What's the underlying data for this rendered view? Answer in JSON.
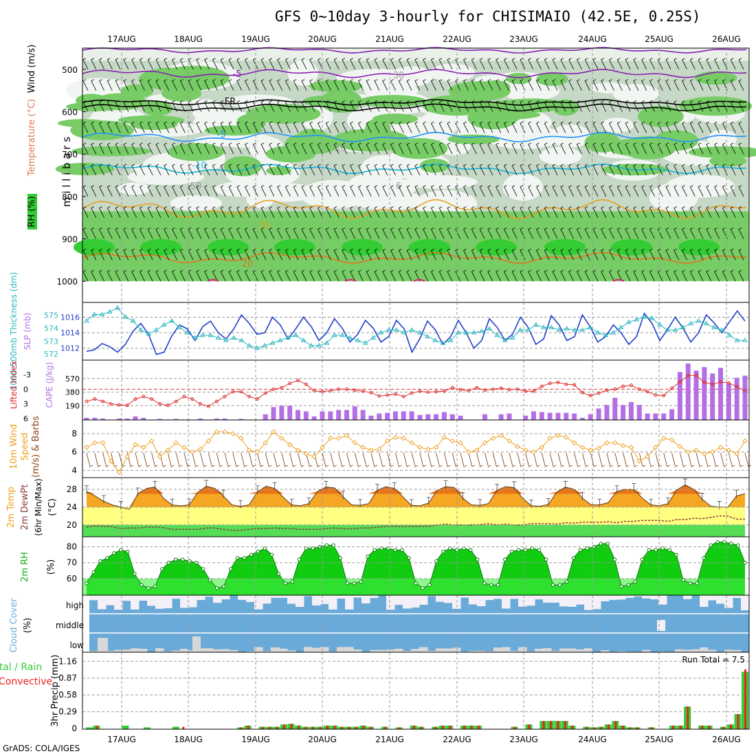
{
  "title": "GFS 0~10day 3-hourly for CHISIMAIO (42.5E, 0.25S)",
  "credit": "GrADS: COLA/IGES",
  "colors": {
    "rh_green": "#66cc66",
    "wind": "#000000",
    "temp_purple": "#8a1eb4",
    "temp_blue": "#1e90ff",
    "temp_cyan": "#14b4dc",
    "temp_orange": "#e6a020",
    "slp": "#1f3fc9",
    "thickness": "#2ab7c0",
    "lifted": "#e03030",
    "cape": "#b46fe6",
    "wind10": "#f0a020",
    "temp2m": "#f0a020",
    "dewpt": "#8b3a3a",
    "rh2m": "#11b011",
    "cloud": "#6aaad8",
    "precip_total": "#33cc33",
    "precip_conv": "#ee2222"
  },
  "chart_data": [
    {
      "panel": "upper-air",
      "type": "heatmap",
      "date_labels": [
        "17AUG",
        "18AUG",
        "19AUG",
        "20AUG",
        "21AUG",
        "22AUG",
        "23AUG",
        "24AUG",
        "25AUG",
        "26AUG"
      ],
      "ylabel": "m i l l i b a r s",
      "side_labels": [
        "RH (%)",
        "Temperature (°C)",
        "Wind (m/s)"
      ],
      "yticks": [
        "500",
        "600",
        "700",
        "800",
        "900",
        "1000"
      ],
      "contour_labels": [
        "-5",
        "FR",
        "-5",
        "-10",
        "15",
        "20",
        "30",
        "50",
        "50",
        "6"
      ]
    },
    {
      "panel": "slp-thickness",
      "type": "line",
      "ylabel_left": "1000-500mb Thickness (dm)",
      "ylabel_right": "SLP (mb)",
      "ticks_thickness": [
        "575",
        "574",
        "573",
        "572"
      ],
      "ticks_slp": [
        "1016",
        "1014",
        "1012"
      ],
      "series": [
        {
          "name": "SLP",
          "values": [
            1011.6,
            1011.8,
            1012.6,
            1012.2,
            1011.5,
            1012.5,
            1014.2,
            1015.2,
            1013.8,
            1011.2,
            1011.5,
            1013.6,
            1015.0,
            1014.5,
            1013.0,
            1014.8,
            1015.5,
            1014.0,
            1013.2,
            1014.5,
            1016.3,
            1015.2,
            1013.8,
            1014.0,
            1016.0,
            1015.0,
            1013.2,
            1014.5,
            1016.0,
            1014.8,
            1013.0,
            1014.0,
            1015.8,
            1014.6,
            1012.8,
            1013.8,
            1015.6,
            1014.6,
            1012.8,
            1013.5,
            1015.6,
            1014.5,
            1011.5,
            1013.2,
            1015.5,
            1014.4,
            1012.5,
            1013.5,
            1015.6,
            1014.0,
            1012.0,
            1013.0,
            1015.8,
            1014.7,
            1013.0,
            1013.8,
            1016.0,
            1014.7,
            1012.5,
            1013.2,
            1016.2,
            1015.0,
            1013.0,
            1013.5,
            1016.3,
            1014.8,
            1012.8,
            1013.5,
            1015.0,
            1014.0,
            1012.5,
            1013.5,
            1016.5,
            1015.2,
            1013.0,
            1014.4,
            1016.0,
            1014.6,
            1012.8,
            1014.0,
            1016.3,
            1015.3,
            1014.0,
            1015.4,
            1016.8,
            1015.5
          ]
        },
        {
          "name": "Thickness",
          "values": [
            574.5,
            575.0,
            575.0,
            575.2,
            575.5,
            574.8,
            574.5,
            573.8,
            573.5,
            573.8,
            574.2,
            574.5,
            574.0,
            573.6,
            573.2,
            573.4,
            573.4,
            573.2,
            573.0,
            573.2,
            573.0,
            572.6,
            572.4,
            572.6,
            572.8,
            573.0,
            573.2,
            573.4,
            573.0,
            572.6,
            572.6,
            572.8,
            573.4,
            573.4,
            573.2,
            573.0,
            572.8,
            573.2,
            573.6,
            573.8,
            573.8,
            573.6,
            573.8,
            573.6,
            573.3,
            573.0,
            572.8,
            573.0,
            573.6,
            573.6,
            573.6,
            573.7,
            573.9,
            573.4,
            573.0,
            573.2,
            573.8,
            573.8,
            574.2,
            574.0,
            574.0,
            573.8,
            573.9,
            573.8,
            573.8,
            574.0,
            573.6,
            573.4,
            573.6,
            574.0,
            574.4,
            574.6,
            574.8,
            574.7,
            574.2,
            573.8,
            573.8,
            574.0,
            574.3,
            574.5,
            574.3,
            574.0,
            573.8,
            573.4,
            573.0,
            573.0
          ]
        }
      ]
    },
    {
      "panel": "cape-lifted-index",
      "type": "bar",
      "ylabel_left": "Lifted Index",
      "ylabel_right": "CAPE (J/kg)",
      "ticks_li": [
        "-3",
        "0",
        "3",
        "6"
      ],
      "ticks_cape": [
        "570",
        "380",
        "190"
      ],
      "series": [
        {
          "name": "CAPE",
          "values": [
            20,
            20,
            10,
            0,
            10,
            10,
            40,
            20,
            0,
            5,
            0,
            5,
            0,
            0,
            10,
            0,
            10,
            10,
            0,
            5,
            0,
            0,
            70,
            170,
            190,
            190,
            130,
            110,
            40,
            110,
            110,
            130,
            130,
            180,
            130,
            50,
            80,
            90,
            110,
            110,
            110,
            60,
            70,
            70,
            100,
            70,
            50,
            0,
            0,
            70,
            0,
            70,
            80,
            0,
            50,
            110,
            100,
            90,
            90,
            90,
            80,
            20,
            70,
            150,
            200,
            300,
            200,
            240,
            200,
            80,
            80,
            80,
            140,
            660,
            780,
            680,
            730,
            640,
            720,
            500,
            580,
            610
          ]
        },
        {
          "name": "Lifted Index",
          "values": [
            2.5,
            2.0,
            2.5,
            3.0,
            3.2,
            3.3,
            2.0,
            1.5,
            2.0,
            3.0,
            3.3,
            2.5,
            1.5,
            2.0,
            3.0,
            3.5,
            2.5,
            1.5,
            0.5,
            0.5,
            1.5,
            2.0,
            0.8,
            0.0,
            -0.3,
            -1.2,
            -1.8,
            -1.0,
            0.3,
            0.5,
            0.3,
            0.0,
            0.0,
            0.2,
            0.4,
            0.7,
            1.4,
            1.2,
            1.0,
            1.5,
            0.8,
            0.4,
            0.6,
            0.5,
            0.4,
            -0.3,
            0.1,
            0.3,
            -0.3,
            0.2,
            0.0,
            -0.2,
            0.1,
            0.0,
            0.4,
            0.4,
            -0.6,
            -1.2,
            -1.4,
            -1.0,
            -0.9,
            0.7,
            1.3,
            0.8,
            0.2,
            0.0,
            -0.6,
            -0.8,
            0.0,
            0.5,
            1.2,
            1.3,
            -0.2,
            -1.5,
            -2.8,
            -2.8,
            -1.4,
            -1.0,
            -1.5,
            -1.3,
            -0.5,
            0.3
          ]
        }
      ]
    },
    {
      "panel": "10m-wind",
      "type": "line",
      "ylabel": "10m Wind Speed (m/s) & Barbs",
      "yticks": [
        "8",
        "6",
        "4"
      ],
      "series": [
        {
          "name": "Wind speed",
          "values": [
            6.5,
            7.0,
            7.0,
            5.0,
            3.8,
            5.5,
            6.8,
            6.5,
            7.2,
            5.5,
            6.2,
            7.0,
            6.5,
            6.0,
            6.3,
            7.2,
            8.2,
            8.2,
            8.0,
            7.5,
            6.2,
            6.0,
            7.0,
            8.2,
            7.5,
            6.8,
            6.2,
            5.8,
            5.5,
            6.5,
            7.5,
            7.5,
            7.8,
            7.0,
            6.5,
            6.2,
            6.3,
            7.2,
            7.6,
            7.5,
            7.0,
            6.5,
            6.3,
            6.5,
            7.6,
            7.2,
            7.0,
            6.0,
            6.2,
            7.0,
            7.5,
            7.8,
            7.2,
            6.6,
            6.2,
            6.0,
            6.5,
            7.5,
            7.8,
            7.6,
            7.0,
            6.5,
            6.2,
            6.4,
            7.0,
            7.0,
            6.7,
            6.5,
            5.0,
            5.5,
            6.5,
            7.5,
            7.3,
            6.6,
            6.0,
            6.2,
            5.8,
            6.0,
            6.5,
            6.2,
            5.8,
            7.2
          ]
        }
      ]
    },
    {
      "panel": "2m-temp",
      "type": "area",
      "ylabel": "2m Temp 2m DewPt (6hr Min/Max) (°C)",
      "yticks": [
        "28",
        "24",
        "20"
      ],
      "series": [
        {
          "name": "2m Temp",
          "values": [
            27.5,
            26.5,
            25.3,
            24.5,
            24.0,
            23.5,
            27.0,
            28.2,
            28.5,
            26.0,
            24.5,
            24.3,
            24.5,
            27.3,
            28.7,
            28.2,
            26.5,
            24.5,
            24.2,
            24.5,
            27.5,
            28.7,
            28.2,
            26.2,
            24.5,
            24.3,
            24.8,
            27.5,
            28.5,
            28.3,
            26.3,
            24.5,
            24.4,
            24.8,
            27.8,
            28.6,
            28.2,
            26.3,
            24.4,
            24.3,
            24.9,
            27.8,
            28.6,
            28.4,
            26.0,
            24.5,
            24.4,
            24.8,
            27.8,
            28.6,
            28.4,
            26.0,
            24.3,
            24.2,
            24.6,
            27.4,
            28.5,
            28.0,
            26.0,
            24.5,
            24.5,
            25.0,
            27.5,
            28.0,
            28.0,
            26.0,
            24.5,
            24.3,
            24.8,
            27.8,
            29.0,
            28.0,
            25.8,
            24.2,
            24.0,
            24.0,
            26.5,
            27.0
          ]
        },
        {
          "name": "2m DewPt",
          "values": [
            19.5,
            19.8,
            19.7,
            19.6,
            19.2,
            19.3,
            19.3,
            19.5,
            19.5,
            19.4,
            19.0,
            19.0,
            19.0,
            19.0,
            19.3,
            19.3,
            19.0,
            18.8,
            18.8,
            19.0,
            19.2,
            19.2,
            19.3,
            19.2,
            19.2,
            19.0,
            19.0,
            19.0,
            19.2,
            19.3,
            19.2,
            19.1,
            19.3,
            19.3,
            19.5,
            19.7,
            19.7,
            19.6,
            19.7,
            19.7,
            19.7,
            20.0,
            20.2,
            20.0,
            20.0,
            20.0,
            20.1,
            20.3,
            20.0,
            20.2,
            20.0,
            20.0,
            20.3,
            20.3,
            20.3,
            20.2,
            20.5,
            20.4,
            20.6,
            20.6,
            20.6,
            20.7,
            20.5,
            20.8,
            20.8,
            21.0,
            21.0,
            21.0,
            20.8,
            21.2,
            21.2,
            21.5,
            21.4,
            21.7,
            22.0,
            22.0,
            21.3,
            21.3
          ]
        }
      ]
    },
    {
      "panel": "2m-rh",
      "type": "area",
      "ylabel": "2m RH (%)",
      "yticks": [
        "80",
        "70",
        "60"
      ],
      "series": [
        {
          "name": "2m RH",
          "values": [
            57,
            64,
            71,
            73,
            76,
            78,
            77,
            63,
            56,
            54,
            55,
            66,
            70,
            72,
            72,
            71,
            70,
            66,
            59,
            54,
            55,
            66,
            73,
            73,
            75,
            77,
            79,
            75,
            63,
            57,
            58,
            72,
            79,
            79,
            80,
            81,
            81,
            73,
            57,
            57,
            58,
            74,
            78,
            79,
            79,
            78,
            78,
            73,
            57,
            54,
            56,
            71,
            77,
            79,
            78,
            79,
            78,
            72,
            57,
            56,
            56,
            72,
            77,
            78,
            78,
            79,
            78,
            72,
            56,
            56,
            58,
            73,
            78,
            79,
            80,
            82,
            82,
            72,
            55,
            56,
            58,
            72,
            78,
            78,
            79,
            78,
            75,
            59,
            57,
            57,
            73,
            81,
            83,
            83,
            82,
            81,
            70
          ]
        }
      ]
    },
    {
      "panel": "cloud-cover",
      "type": "bar",
      "ylabel": "Cloud Cover (%)",
      "row_labels": [
        "high",
        "middle",
        "low"
      ]
    },
    {
      "panel": "precip",
      "type": "bar",
      "ylabel": "3hr Precip (mm)",
      "legend_left": [
        "Total / Rain",
        "Convective"
      ],
      "yticks": [
        "1.16",
        "0.87",
        "0.58",
        "0.29",
        "0"
      ],
      "run_total_label": "Run Total = 7.5",
      "series": [
        {
          "name": "Total",
          "values": [
            0.02,
            0.05,
            0,
            0,
            0,
            0.05,
            0,
            0,
            0.02,
            0,
            0,
            0,
            0.03,
            0,
            0,
            0,
            0,
            0,
            0,
            0,
            0,
            0.02,
            0.05,
            0,
            0.03,
            0.03,
            0.03,
            0.07,
            0.08,
            0.05,
            0.03,
            0.03,
            0.03,
            0.05,
            0.05,
            0.03,
            0.03,
            0.03,
            0.05,
            0.03,
            0,
            0.03,
            0,
            0.02,
            0,
            0.05,
            0.03,
            0,
            0.03,
            0.05,
            0.05,
            0,
            0.05,
            0.05,
            0.05,
            0,
            0,
            0,
            0,
            0.03,
            0,
            0.07,
            0,
            0.13,
            0.13,
            0.13,
            0.13,
            0.05,
            0,
            0.03,
            0.02,
            0.03,
            0.07,
            0.13,
            0.05,
            0.02,
            0.02,
            0,
            0.02,
            0,
            0,
            0.05,
            0.05,
            0.38,
            0,
            0.05,
            0.05,
            0,
            0.03,
            0.07,
            0.25,
            0.98
          ]
        },
        {
          "name": "Convective",
          "values": [
            0,
            0.05,
            0,
            0,
            0,
            0,
            0,
            0,
            0,
            0,
            0,
            0,
            0,
            0.03,
            0,
            0,
            0,
            0,
            0,
            0,
            0,
            0.02,
            0.05,
            0,
            0.03,
            0.03,
            0.03,
            0.07,
            0.08,
            0.05,
            0.03,
            0.03,
            0.03,
            0.05,
            0.05,
            0.03,
            0.03,
            0.03,
            0.05,
            0.03,
            0,
            0.03,
            0,
            0.02,
            0,
            0.05,
            0.03,
            0,
            0.03,
            0.05,
            0.05,
            0,
            0.05,
            0.05,
            0.05,
            0,
            0,
            0,
            0,
            0.03,
            0,
            0.07,
            0,
            0.13,
            0.13,
            0.13,
            0.13,
            0.05,
            0,
            0.03,
            0.02,
            0.03,
            0.07,
            0.13,
            0.05,
            0.02,
            0.02,
            0,
            0.02,
            0,
            0,
            0.05,
            0.05,
            0.38,
            0,
            0.05,
            0.05,
            0,
            0.03,
            0.07,
            0.25,
            1.02
          ]
        }
      ]
    }
  ]
}
